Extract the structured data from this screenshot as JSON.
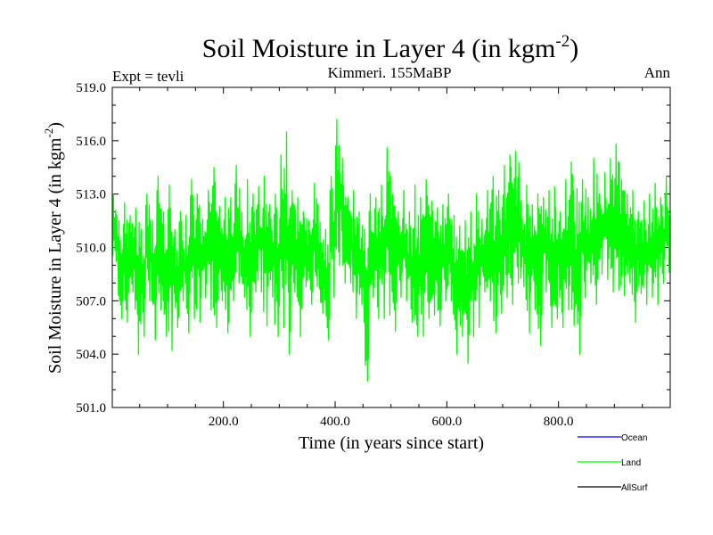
{
  "chart_data": {
    "type": "line",
    "title": "Soil Moisture in Layer 4 (in kgm",
    "title_sup": "-2",
    "title_end": ")",
    "subtitle_left": "Expt = tevli",
    "subtitle_center": "Kimmeri. 155MaBP",
    "subtitle_right": "Ann",
    "xlabel": "Time (in years since start)",
    "ylabel": "Soil Moisture in Layer 4 (in kgm",
    "ylabel_sup": "-2",
    "ylabel_end": ")",
    "xlim": [
      1,
      1000
    ],
    "ylim": [
      501,
      519
    ],
    "xticks": [
      200,
      400,
      600,
      800
    ],
    "xtick_labels": [
      "200.0",
      "400.0",
      "600.0",
      "800.0"
    ],
    "yticks": [
      501,
      504,
      507,
      510,
      513,
      516,
      519
    ],
    "ytick_labels": [
      "501.0",
      "504.0",
      "507.0",
      "510.0",
      "513.0",
      "516.0",
      "519.0"
    ],
    "legend": [
      {
        "name": "Ocean",
        "color": "#0000ff"
      },
      {
        "name": "Land",
        "color": "#00ff00"
      },
      {
        "name": "AllSurf",
        "color": "#000000"
      }
    ],
    "series": [
      {
        "name": "Land",
        "color": "#00ff00",
        "x_start": 1,
        "x_step": 10,
        "envelope_note": "approximate per-decade min/max readings",
        "values": [
          [
            509.2,
            513.0
          ],
          [
            506.0,
            511.5
          ],
          [
            505.8,
            512.5
          ],
          [
            507.5,
            511.8
          ],
          [
            504.0,
            512.2
          ],
          [
            505.0,
            511.0
          ],
          [
            507.0,
            513.0
          ],
          [
            504.8,
            511.5
          ],
          [
            506.5,
            514.0
          ],
          [
            505.0,
            512.0
          ],
          [
            504.2,
            513.5
          ],
          [
            505.5,
            511.0
          ],
          [
            507.0,
            512.0
          ],
          [
            505.2,
            511.8
          ],
          [
            506.0,
            513.8
          ],
          [
            505.8,
            513.0
          ],
          [
            507.2,
            511.6
          ],
          [
            506.5,
            513.2
          ],
          [
            505.5,
            514.5
          ],
          [
            507.0,
            512.3
          ],
          [
            505.2,
            512.8
          ],
          [
            507.0,
            512.8
          ],
          [
            508.0,
            514.6
          ],
          [
            507.2,
            512.0
          ],
          [
            505.0,
            513.8
          ],
          [
            507.5,
            513.0
          ],
          [
            507.5,
            513.4
          ],
          [
            505.6,
            514.0
          ],
          [
            507.2,
            512.4
          ],
          [
            505.0,
            513.0
          ],
          [
            505.5,
            515.2
          ],
          [
            504.0,
            516.5
          ],
          [
            507.5,
            513.2
          ],
          [
            505.0,
            512.8
          ],
          [
            507.8,
            512.0
          ],
          [
            506.8,
            511.5
          ],
          [
            507.8,
            513.6
          ],
          [
            506.3,
            511.4
          ],
          [
            504.8,
            511.0
          ],
          [
            507.2,
            514.0
          ],
          [
            509.0,
            517.2
          ],
          [
            508.0,
            515.0
          ],
          [
            508.0,
            512.8
          ],
          [
            506.0,
            513.2
          ],
          [
            506.8,
            512.0
          ],
          [
            502.5,
            511.0
          ],
          [
            507.2,
            513.0
          ],
          [
            506.0,
            512.8
          ],
          [
            506.0,
            513.5
          ],
          [
            506.2,
            515.6
          ],
          [
            505.3,
            513.0
          ],
          [
            507.2,
            512.0
          ],
          [
            507.0,
            513.2
          ],
          [
            505.8,
            512.0
          ],
          [
            505.0,
            513.5
          ],
          [
            505.0,
            512.8
          ],
          [
            506.0,
            513.8
          ],
          [
            506.2,
            512.6
          ],
          [
            505.6,
            512.2
          ],
          [
            507.0,
            512.4
          ],
          [
            507.0,
            513.0
          ],
          [
            504.0,
            511.8
          ],
          [
            505.0,
            511.2
          ],
          [
            503.5,
            511.5
          ],
          [
            505.0,
            512.0
          ],
          [
            505.5,
            513.0
          ],
          [
            507.5,
            511.6
          ],
          [
            507.0,
            513.2
          ],
          [
            505.2,
            514.0
          ],
          [
            506.3,
            513.2
          ],
          [
            507.2,
            514.6
          ],
          [
            506.8,
            515.2
          ],
          [
            508.0,
            515.4
          ],
          [
            507.8,
            512.6
          ],
          [
            505.2,
            513.5
          ],
          [
            506.5,
            512.4
          ],
          [
            504.5,
            513.0
          ],
          [
            507.5,
            512.8
          ],
          [
            505.5,
            513.2
          ],
          [
            506.0,
            513.4
          ],
          [
            505.5,
            512.0
          ],
          [
            506.5,
            513.8
          ],
          [
            505.6,
            514.8
          ],
          [
            504.0,
            513.3
          ],
          [
            507.2,
            513.8
          ],
          [
            508.0,
            512.8
          ],
          [
            506.8,
            515.0
          ],
          [
            508.5,
            513.0
          ],
          [
            508.2,
            514.2
          ],
          [
            507.5,
            515.0
          ],
          [
            507.6,
            515.8
          ],
          [
            507.3,
            513.8
          ],
          [
            508.0,
            513.0
          ],
          [
            505.8,
            513.2
          ],
          [
            507.4,
            512.0
          ],
          [
            506.8,
            512.6
          ],
          [
            507.2,
            513.0
          ],
          [
            506.8,
            513.6
          ],
          [
            508.0,
            512.8
          ],
          [
            508.6,
            514.0
          ]
        ]
      }
    ]
  }
}
